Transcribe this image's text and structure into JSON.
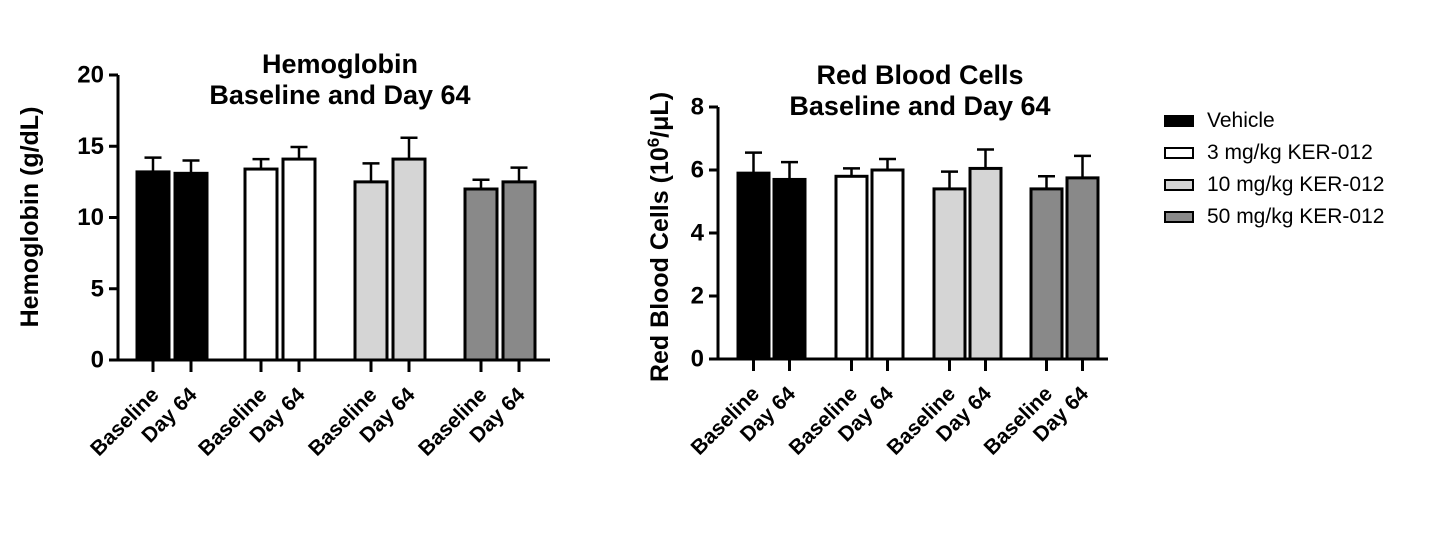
{
  "legend": {
    "items": [
      {
        "label": "Vehicle",
        "fill": "#000000"
      },
      {
        "label": "3 mg/kg KER-012",
        "fill": "#ffffff"
      },
      {
        "label": "10 mg/kg KER-012",
        "fill": "#d5d5d5"
      },
      {
        "label": "50 mg/kg KER-012",
        "fill": "#898989"
      }
    ]
  },
  "chart_data": [
    {
      "type": "bar",
      "title_line1": "Hemoglobin",
      "title_line2": "Baseline and Day 64",
      "ylabel": "Hemoglobin (g/dL)",
      "ylim": [
        0,
        20
      ],
      "yticks": [
        0,
        5,
        10,
        15,
        20
      ],
      "categories": [
        "Baseline",
        "Day 64"
      ],
      "series": [
        {
          "name": "Vehicle",
          "fill": "#000000",
          "values": [
            13.2,
            13.1
          ],
          "errors": [
            1.0,
            0.9
          ]
        },
        {
          "name": "3 mg/kg KER-012",
          "fill": "#ffffff",
          "values": [
            13.4,
            14.1
          ],
          "errors": [
            0.7,
            0.85
          ]
        },
        {
          "name": "10 mg/kg KER-012",
          "fill": "#d5d5d5",
          "values": [
            12.5,
            14.1
          ],
          "errors": [
            1.3,
            1.5
          ]
        },
        {
          "name": "50 mg/kg KER-012",
          "fill": "#898989",
          "values": [
            12.0,
            12.5
          ],
          "errors": [
            0.65,
            1.0
          ]
        }
      ],
      "legend_position": "right",
      "grid": false
    },
    {
      "type": "bar",
      "title_line1": "Red Blood Cells",
      "title_line2": "Baseline and Day 64",
      "ylabel": "Red Blood Cells (10^6/μL)",
      "ylabel_parts": {
        "pre": "Red Blood Cells (10",
        "sup": "6",
        "post": "/μL)"
      },
      "ylim": [
        0,
        8
      ],
      "yticks": [
        0,
        2,
        4,
        6,
        8
      ],
      "categories": [
        "Baseline",
        "Day 64"
      ],
      "series": [
        {
          "name": "Vehicle",
          "fill": "#000000",
          "values": [
            5.9,
            5.7
          ],
          "errors": [
            0.65,
            0.55
          ]
        },
        {
          "name": "3 mg/kg KER-012",
          "fill": "#ffffff",
          "values": [
            5.8,
            6.0
          ],
          "errors": [
            0.25,
            0.35
          ]
        },
        {
          "name": "10 mg/kg KER-012",
          "fill": "#d5d5d5",
          "values": [
            5.4,
            6.05
          ],
          "errors": [
            0.55,
            0.6
          ]
        },
        {
          "name": "50 mg/kg KER-012",
          "fill": "#898989",
          "values": [
            5.4,
            5.75
          ],
          "errors": [
            0.4,
            0.7
          ]
        }
      ],
      "legend_position": "right",
      "grid": false
    }
  ]
}
